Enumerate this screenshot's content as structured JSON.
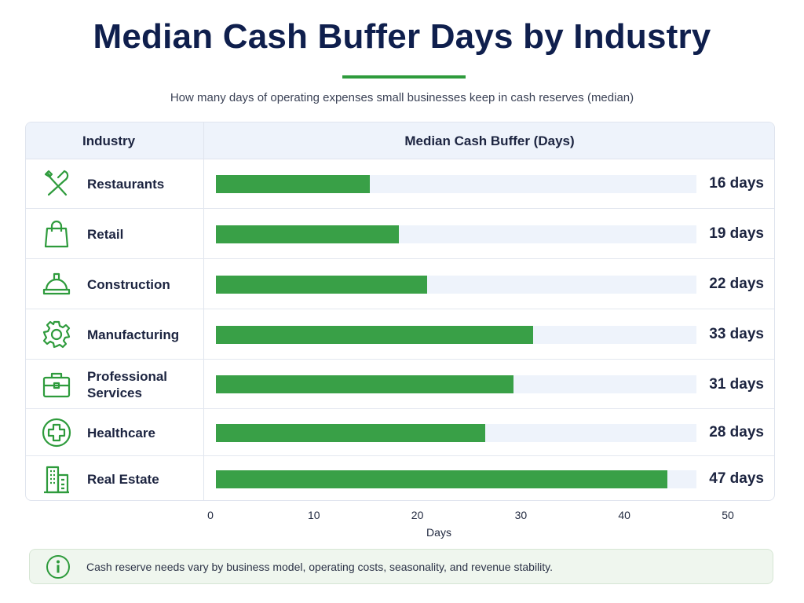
{
  "chart_data": {
    "type": "bar",
    "orientation": "horizontal",
    "title": "Median Cash Buffer Days by Industry",
    "subtitle": "How many days of operating expenses small businesses keep in cash reserves (median)",
    "column_headers": {
      "category": "Industry",
      "value": "Median Cash Buffer (Days)"
    },
    "categories": [
      "Restaurants",
      "Retail",
      "Construction",
      "Manufacturing",
      "Professional Services",
      "Healthcare",
      "Real Estate"
    ],
    "values": [
      16,
      19,
      22,
      33,
      31,
      28,
      47
    ],
    "value_labels": [
      "16 days",
      "19 days",
      "22 days",
      "33 days",
      "31 days",
      "28 days",
      "47 days"
    ],
    "icons": [
      "utensils-icon",
      "shopping-bag-icon",
      "hard-hat-icon",
      "gear-icon",
      "briefcase-icon",
      "medical-cross-icon",
      "building-icon"
    ],
    "xlabel": "Days",
    "xlim": [
      0,
      50
    ],
    "xticks": [
      0,
      10,
      20,
      30,
      40,
      50
    ],
    "bar_color": "#39a047",
    "track_color": "#eef3fb",
    "grid": false,
    "legend": "none"
  },
  "footer_note": {
    "icon": "info-icon",
    "text": "Cash reserve needs vary by business model, operating costs, seasonality, and revenue stability."
  },
  "colors": {
    "title": "#0f1f4d",
    "accent": "#2e9b3c",
    "header_bg": "#eef3fb",
    "note_bg": "#eff6ee"
  }
}
